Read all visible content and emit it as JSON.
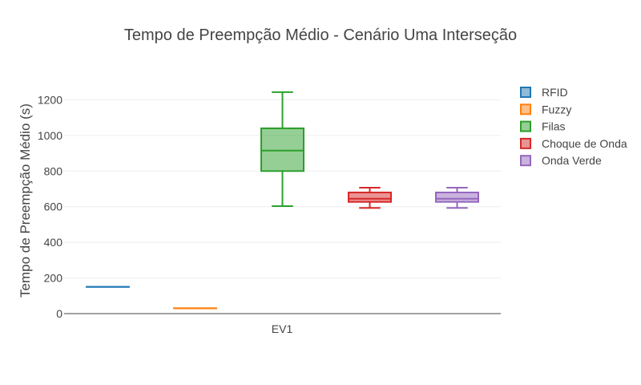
{
  "chart_data": {
    "type": "box",
    "title": "Tempo de Preempção Médio - Cenário Uma Interseção",
    "ylabel": "Tempo de Preempção Médio (s)",
    "xlabel": "",
    "category": "EV1",
    "ylim": [
      0,
      1300
    ],
    "yticks": [
      0,
      200,
      400,
      600,
      800,
      1000,
      1200
    ],
    "legend_position": "top-right",
    "series": [
      {
        "name": "RFID",
        "color": "#1f77b4",
        "min": 150,
        "q1": 150,
        "median": 150,
        "q3": 150,
        "max": 150
      },
      {
        "name": "Fuzzy",
        "color": "#ff7f0e",
        "min": 30,
        "q1": 30,
        "median": 30,
        "q3": 30,
        "max": 30
      },
      {
        "name": "Filas",
        "color": "#2ca02c",
        "min": 603,
        "q1": 800,
        "median": 915,
        "q3": 1040,
        "max": 1243
      },
      {
        "name": "Choque de Onda",
        "color": "#d62728",
        "min": 593,
        "q1": 627,
        "median": 645,
        "q3": 680,
        "max": 707
      },
      {
        "name": "Onda Verde",
        "color": "#9467bd",
        "min": 593,
        "q1": 627,
        "median": 645,
        "q3": 680,
        "max": 707
      }
    ]
  }
}
